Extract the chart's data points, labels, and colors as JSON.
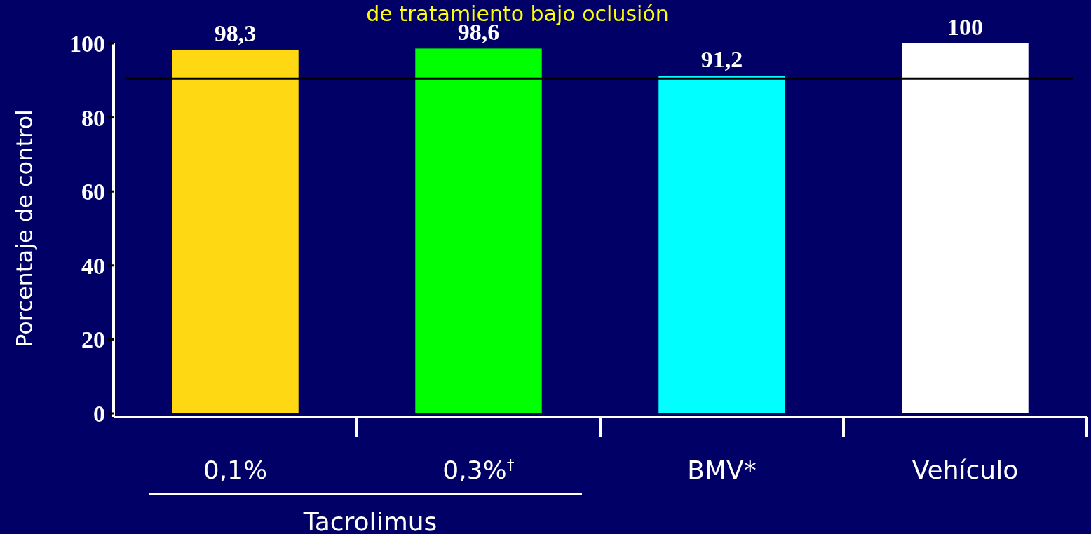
{
  "chart_data": {
    "type": "bar",
    "title": "de tratamiento bajo oclusión",
    "categories": [
      "0,1%",
      "0,3%$^{†}$",
      "BMV*",
      "Vehículo"
    ],
    "values": [
      98.3,
      98.6,
      91.2,
      100
    ],
    "colors": [
      "#ffd814",
      "#00ff00",
      "#00ffff",
      "#ffffff"
    ],
    "value_labels": [
      "98,3",
      "98,6",
      "91,2",
      "100"
    ],
    "ylabel": "Porcentaje de  control",
    "ylim": [
      0,
      100
    ],
    "yticks": [
      0,
      20,
      40,
      60,
      80,
      100
    ],
    "ref_lines": [
      {
        "axis": "y",
        "value": 90.5,
        "color": "#000000"
      }
    ],
    "annotations": [
      "Tacrolimus"
    ],
    "grid": false
  }
}
